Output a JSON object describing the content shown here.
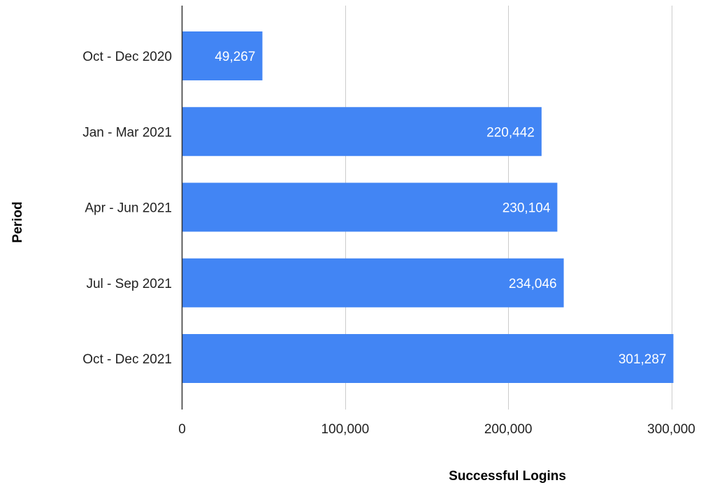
{
  "chart_data": {
    "type": "bar",
    "orientation": "horizontal",
    "title": "",
    "xlabel": "Successful Logins",
    "ylabel": "Period",
    "categories": [
      "Oct - Dec 2020",
      "Jan - Mar 2021",
      "Apr - Jun 2021",
      "Jul - Sep 2021",
      "Oct - Dec 2021"
    ],
    "values": [
      49267,
      220442,
      230104,
      234046,
      301287
    ],
    "data_labels": [
      "49,267",
      "220,442",
      "230,104",
      "234,046",
      "301,287"
    ],
    "xlim": [
      0,
      300000
    ],
    "xticks": [
      0,
      100000,
      200000,
      300000
    ],
    "xtick_labels": [
      "0",
      "100,000",
      "200,000",
      "300,000"
    ],
    "grid": "vertical",
    "legend": "none",
    "colors": {
      "bar": "#4285f4",
      "grid": "#cccccc",
      "axis": "#333333",
      "data_label": "#ffffff"
    }
  }
}
